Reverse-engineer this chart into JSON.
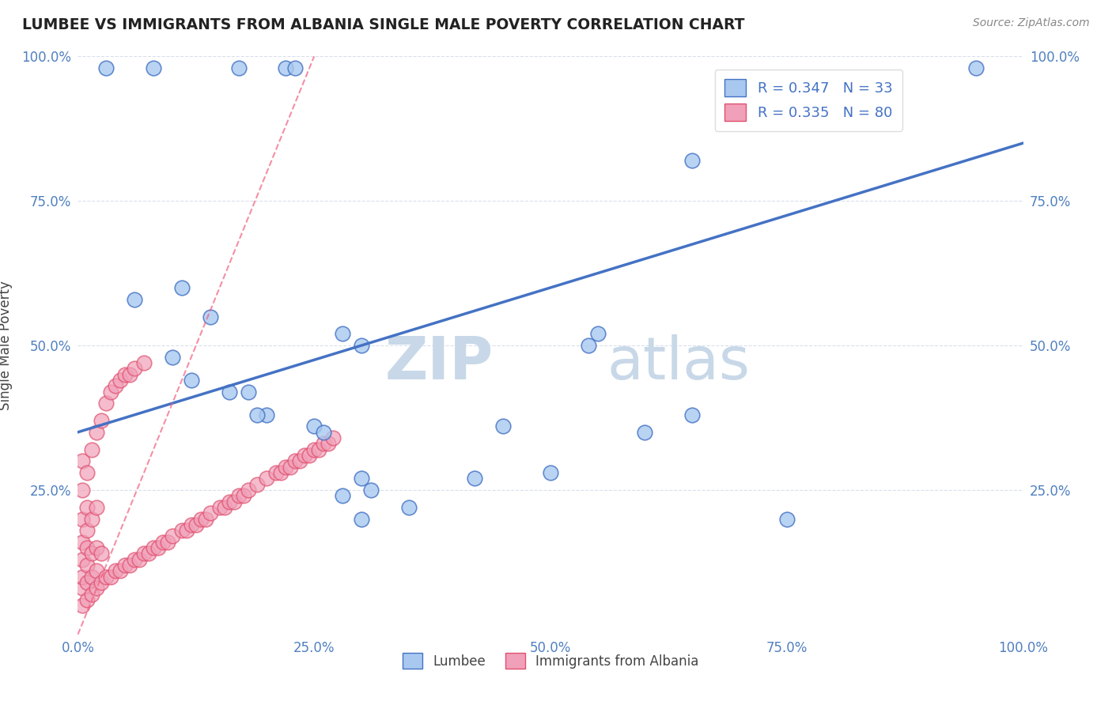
{
  "title": "LUMBEE VS IMMIGRANTS FROM ALBANIA SINGLE MALE POVERTY CORRELATION CHART",
  "source": "Source: ZipAtlas.com",
  "xlabel": "",
  "ylabel": "Single Male Poverty",
  "xlim": [
    0,
    1
  ],
  "ylim": [
    0,
    1
  ],
  "xticks": [
    0,
    0.25,
    0.5,
    0.75,
    1.0
  ],
  "yticks": [
    0.25,
    0.5,
    0.75,
    1.0
  ],
  "xticklabels": [
    "0.0%",
    "25.0%",
    "50.0%",
    "75.0%",
    "100.0%"
  ],
  "yticklabels": [
    "25.0%",
    "50.0%",
    "75.0%",
    "100.0%"
  ],
  "right_yticklabels": [
    "25.0%",
    "50.0%",
    "75.0%",
    "100.0%"
  ],
  "lumbee_R": 0.347,
  "lumbee_N": 33,
  "albania_R": 0.335,
  "albania_N": 80,
  "lumbee_color": "#a8c8f0",
  "albania_color": "#f0a0b8",
  "lumbee_line_color": "#4472c4",
  "albania_line_color": "#f06080",
  "albania_edge_color": "#e05070",
  "watermark_zip": "ZIP",
  "watermark_atlas": "atlas",
  "watermark_color": "#c8d8e8",
  "lumbee_line_y0": 0.35,
  "lumbee_line_y1": 0.85,
  "albania_line_x0": 0.0,
  "albania_line_y0": 0.0,
  "albania_line_x1": 0.25,
  "albania_line_y1": 1.0,
  "lumbee_x": [
    0.03,
    0.08,
    0.17,
    0.22,
    0.23,
    0.06,
    0.11,
    0.14,
    0.1,
    0.12,
    0.28,
    0.3,
    0.55,
    0.54,
    0.45,
    0.65,
    0.95,
    0.2,
    0.18,
    0.16,
    0.19,
    0.25,
    0.26,
    0.3,
    0.31,
    0.5,
    0.42,
    0.6,
    0.65,
    0.75,
    0.3,
    0.35,
    0.28
  ],
  "lumbee_y": [
    0.98,
    0.98,
    0.98,
    0.98,
    0.98,
    0.58,
    0.6,
    0.55,
    0.48,
    0.44,
    0.52,
    0.5,
    0.52,
    0.5,
    0.36,
    0.82,
    0.98,
    0.38,
    0.42,
    0.42,
    0.38,
    0.36,
    0.35,
    0.27,
    0.25,
    0.28,
    0.27,
    0.35,
    0.38,
    0.2,
    0.2,
    0.22,
    0.24
  ],
  "albania_x": [
    0.005,
    0.005,
    0.005,
    0.005,
    0.005,
    0.005,
    0.005,
    0.005,
    0.01,
    0.01,
    0.01,
    0.01,
    0.01,
    0.01,
    0.01,
    0.015,
    0.015,
    0.015,
    0.015,
    0.015,
    0.02,
    0.02,
    0.02,
    0.02,
    0.02,
    0.025,
    0.025,
    0.025,
    0.03,
    0.03,
    0.035,
    0.035,
    0.04,
    0.04,
    0.045,
    0.045,
    0.05,
    0.05,
    0.055,
    0.055,
    0.06,
    0.06,
    0.065,
    0.07,
    0.07,
    0.075,
    0.08,
    0.085,
    0.09,
    0.095,
    0.1,
    0.11,
    0.115,
    0.12,
    0.125,
    0.13,
    0.135,
    0.14,
    0.15,
    0.155,
    0.16,
    0.165,
    0.17,
    0.175,
    0.18,
    0.19,
    0.2,
    0.21,
    0.215,
    0.22,
    0.225,
    0.23,
    0.235,
    0.24,
    0.245,
    0.25,
    0.255,
    0.26,
    0.265,
    0.27
  ],
  "albania_y": [
    0.05,
    0.08,
    0.1,
    0.13,
    0.16,
    0.2,
    0.25,
    0.3,
    0.06,
    0.09,
    0.12,
    0.15,
    0.18,
    0.22,
    0.28,
    0.07,
    0.1,
    0.14,
    0.2,
    0.32,
    0.08,
    0.11,
    0.15,
    0.22,
    0.35,
    0.09,
    0.14,
    0.37,
    0.1,
    0.4,
    0.1,
    0.42,
    0.11,
    0.43,
    0.11,
    0.44,
    0.12,
    0.45,
    0.12,
    0.45,
    0.13,
    0.46,
    0.13,
    0.14,
    0.47,
    0.14,
    0.15,
    0.15,
    0.16,
    0.16,
    0.17,
    0.18,
    0.18,
    0.19,
    0.19,
    0.2,
    0.2,
    0.21,
    0.22,
    0.22,
    0.23,
    0.23,
    0.24,
    0.24,
    0.25,
    0.26,
    0.27,
    0.28,
    0.28,
    0.29,
    0.29,
    0.3,
    0.3,
    0.31,
    0.31,
    0.32,
    0.32,
    0.33,
    0.33,
    0.34
  ]
}
